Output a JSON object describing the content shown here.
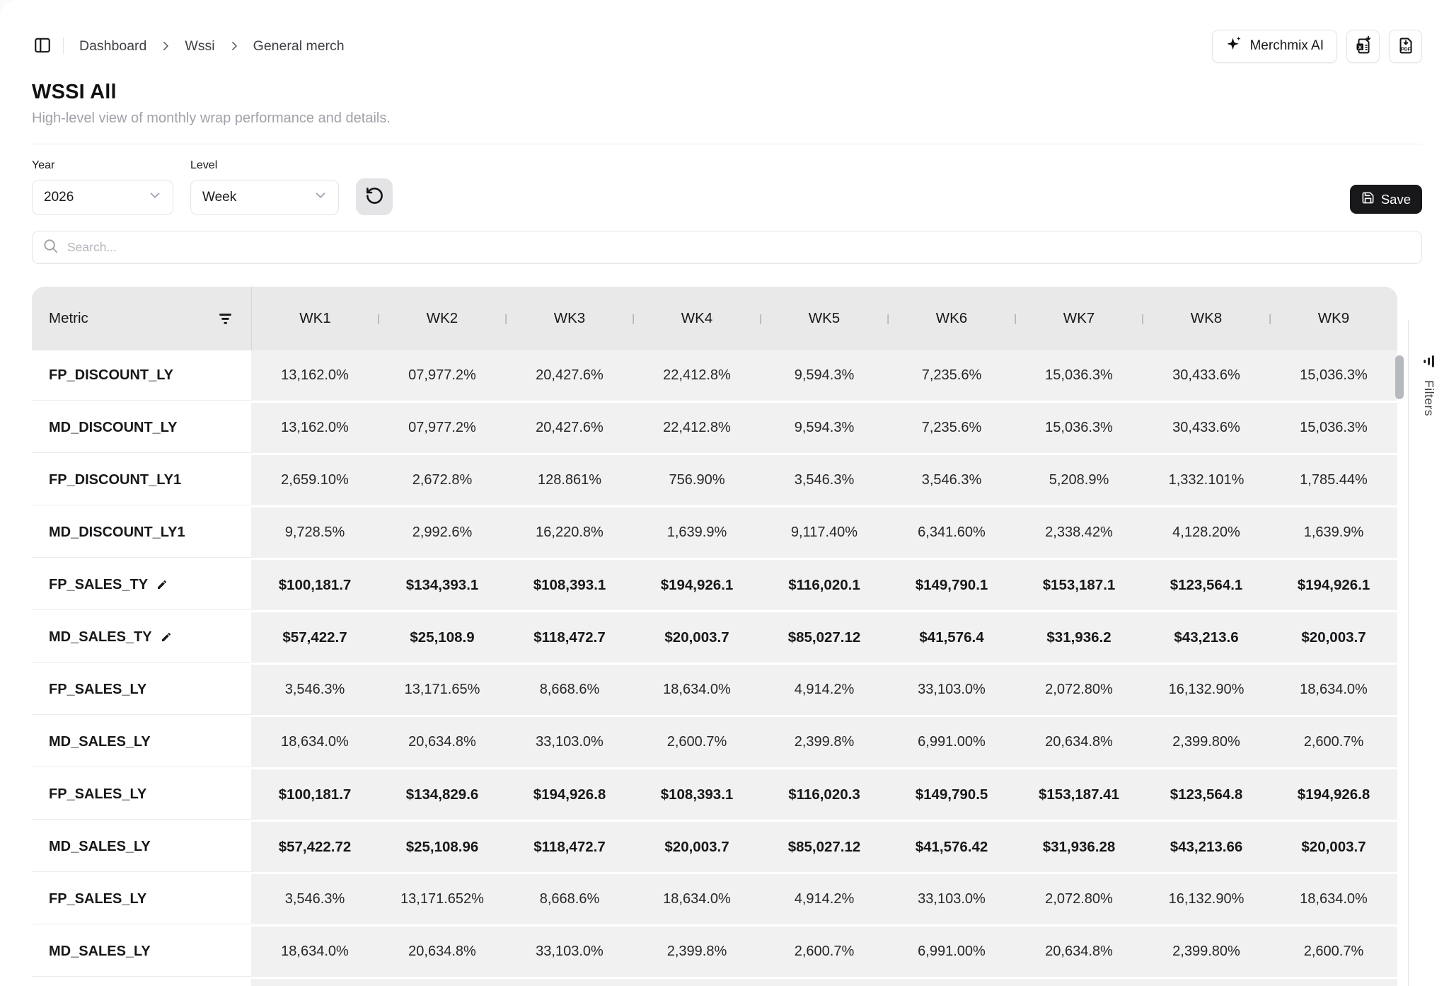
{
  "breadcrumb": {
    "items": [
      "Dashboard",
      "Wssi",
      "General merch"
    ]
  },
  "header": {
    "title": "WSSI All",
    "subtitle": "High-level view of monthly wrap performance and details."
  },
  "buttons": {
    "merchmix_label": "Merchmix AI",
    "save_label": "Save"
  },
  "filters": {
    "year_label": "Year",
    "year_value": "2026",
    "level_label": "Level",
    "level_value": "Week"
  },
  "search": {
    "placeholder": "Search..."
  },
  "right_panel": {
    "filters_label": "Filters"
  },
  "icons": {
    "sidebar-toggle": "panel-left outline",
    "breadcrumb-separator": "chevron-right",
    "merchmix": "sparkles",
    "excel-export": "spreadsheet file with download arrow",
    "pdf-export": "PDF file with download arrow",
    "refresh": "rotate-ccw circular arrow",
    "save": "floppy-disk",
    "search": "magnifier",
    "metric-filter": "funnel lines",
    "edit": "pencil",
    "select-caret": "chevron-down",
    "filters-tab": "funnel lines rotated"
  },
  "colors": {
    "accent": "#18181b",
    "table_header_bg": "#e9e9e9",
    "cell_bg": "#f1f1f2",
    "border": "#e4e4e7",
    "muted_text": "#a1a1aa"
  },
  "table": {
    "metric_header": "Metric",
    "week_headers": [
      "WK1",
      "WK2",
      "WK3",
      "WK4",
      "WK5",
      "WK6",
      "WK7",
      "WK8",
      "WK9"
    ],
    "rows": [
      {
        "metric": "FP_DISCOUNT_LY",
        "editable": false,
        "bold": false,
        "values": [
          "13,162.0%",
          "07,977.2%",
          "20,427.6%",
          "22,412.8%",
          "9,594.3%",
          "7,235.6%",
          "15,036.3%",
          "30,433.6%",
          "15,036.3%"
        ]
      },
      {
        "metric": "MD_DISCOUNT_LY",
        "editable": false,
        "bold": false,
        "values": [
          "13,162.0%",
          "07,977.2%",
          "20,427.6%",
          "22,412.8%",
          "9,594.3%",
          "7,235.6%",
          "15,036.3%",
          "30,433.6%",
          "15,036.3%"
        ]
      },
      {
        "metric": "FP_DISCOUNT_LY1",
        "editable": false,
        "bold": false,
        "values": [
          "2,659.10%",
          "2,672.8%",
          "128.861%",
          "756.90%",
          "3,546.3%",
          "3,546.3%",
          "5,208.9%",
          "1,332.101%",
          "1,785.44%"
        ]
      },
      {
        "metric": "MD_DISCOUNT_LY1",
        "editable": false,
        "bold": false,
        "values": [
          "9,728.5%",
          "2,992.6%",
          "16,220.8%",
          "1,639.9%",
          "9,117.40%",
          "6,341.60%",
          "2,338.42%",
          "4,128.20%",
          "1,639.9%"
        ]
      },
      {
        "metric": "FP_SALES_TY",
        "editable": true,
        "bold": true,
        "values": [
          "$100,181.7",
          "$134,393.1",
          "$108,393.1",
          "$194,926.1",
          "$116,020.1",
          "$149,790.1",
          "$153,187.1",
          "$123,564.1",
          "$194,926.1"
        ]
      },
      {
        "metric": "MD_SALES_TY",
        "editable": true,
        "bold": true,
        "values": [
          "$57,422.7",
          "$25,108.9",
          "$118,472.7",
          "$20,003.7",
          "$85,027.12",
          "$41,576.4",
          "$31,936.2",
          "$43,213.6",
          "$20,003.7"
        ]
      },
      {
        "metric": "FP_SALES_LY",
        "editable": false,
        "bold": false,
        "values": [
          "3,546.3%",
          "13,171.65%",
          "8,668.6%",
          "18,634.0%",
          "4,914.2%",
          "33,103.0%",
          "2,072.80%",
          "16,132.90%",
          "18,634.0%"
        ]
      },
      {
        "metric": "MD_SALES_LY",
        "editable": false,
        "bold": false,
        "values": [
          "18,634.0%",
          "20,634.8%",
          "33,103.0%",
          "2,600.7%",
          "2,399.8%",
          "6,991.00%",
          "20,634.8%",
          "2,399.80%",
          "2,600.7%"
        ]
      },
      {
        "metric": "FP_SALES_LY",
        "editable": false,
        "bold": true,
        "values": [
          "$100,181.7",
          "$134,829.6",
          "$194,926.8",
          "$108,393.1",
          "$116,020.3",
          "$149,790.5",
          "$153,187.41",
          "$123,564.8",
          "$194,926.8"
        ]
      },
      {
        "metric": "MD_SALES_LY",
        "editable": false,
        "bold": true,
        "values": [
          "$57,422.72",
          "$25,108.96",
          "$118,472.7",
          "$20,003.7",
          "$85,027.12",
          "$41,576.42",
          "$31,936.28",
          "$43,213.66",
          "$20,003.7"
        ]
      },
      {
        "metric": "FP_SALES_LY",
        "editable": false,
        "bold": false,
        "values": [
          "3,546.3%",
          "13,171.652%",
          "8,668.6%",
          "18,634.0%",
          "4,914.2%",
          "33,103.0%",
          "2,072.80%",
          "16,132.90%",
          "18,634.0%"
        ]
      },
      {
        "metric": "MD_SALES_LY",
        "editable": false,
        "bold": false,
        "values": [
          "18,634.0%",
          "20,634.8%",
          "33,103.0%",
          "2,399.8%",
          "2,600.7%",
          "6,991.00%",
          "20,634.8%",
          "2,399.80%",
          "2,600.7%"
        ]
      }
    ]
  }
}
